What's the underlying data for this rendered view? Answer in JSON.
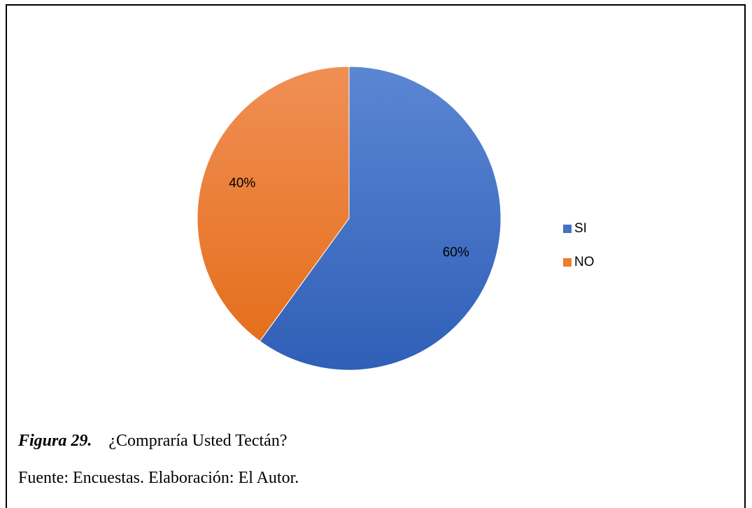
{
  "chart_data": {
    "type": "pie",
    "categories": [
      "SI",
      "NO"
    ],
    "values": [
      60,
      40
    ],
    "data_labels": [
      "60%",
      "40%"
    ],
    "colors": [
      "#4472C4",
      "#ED7D31"
    ],
    "start_angle_deg": 0,
    "direction": "clockwise",
    "legend_position": "right"
  },
  "caption": {
    "figure_label": "Figura 29.",
    "figure_title": "¿Compraría Usted Tectán?"
  },
  "source": {
    "text": "Fuente: Encuestas. Elaboración: El Autor."
  }
}
